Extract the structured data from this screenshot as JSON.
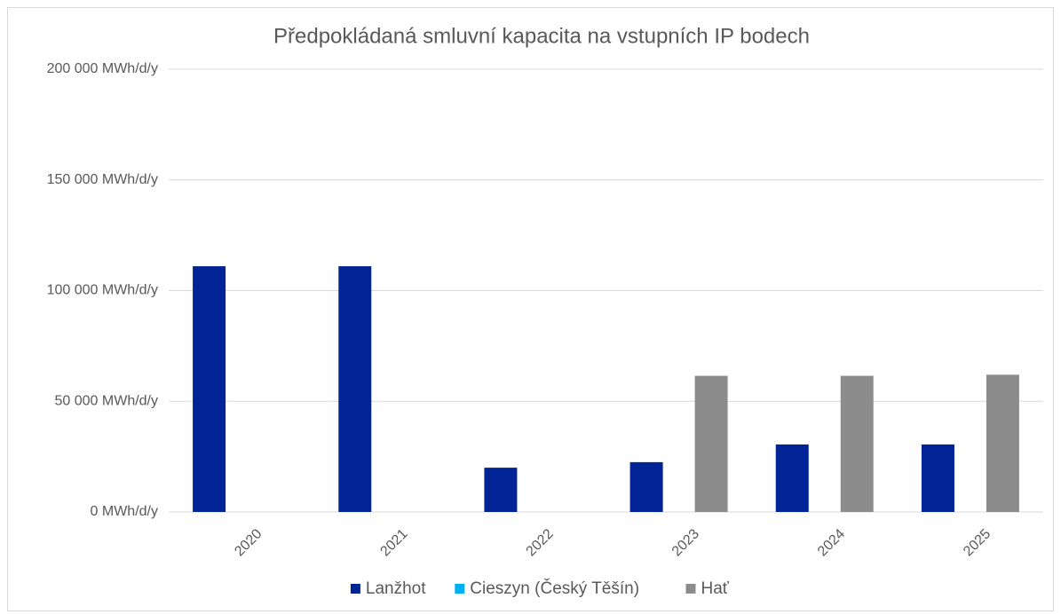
{
  "chart_data": {
    "type": "bar",
    "title": "Předpokládaná smluvní kapacita na vstupních IP bodech",
    "categories": [
      "2020",
      "2021",
      "2022",
      "2023",
      "2024",
      "2025"
    ],
    "series": [
      {
        "name": "Lanžhot",
        "color": "#002395",
        "values": [
          111000,
          111000,
          20000,
          22500,
          30500,
          30500
        ]
      },
      {
        "name": "Cieszyn (Český Těšín)",
        "color": "#00b0f0",
        "values": [
          0,
          0,
          0,
          0,
          0,
          0
        ]
      },
      {
        "name": "Hať",
        "color": "#8c8c8c",
        "values": [
          0,
          0,
          0,
          61500,
          61500,
          62000
        ]
      }
    ],
    "ylim": [
      0,
      200000
    ],
    "yticks": [
      {
        "value": 0,
        "label": "0 MWh/d/y"
      },
      {
        "value": 50000,
        "label": "50 000 MWh/d/y"
      },
      {
        "value": 100000,
        "label": "100 000 MWh/d/y"
      },
      {
        "value": 150000,
        "label": "150 000 MWh/d/y"
      },
      {
        "value": 200000,
        "label": "200 000 MWh/d/y"
      }
    ],
    "grid": true,
    "legend": "bottom"
  }
}
